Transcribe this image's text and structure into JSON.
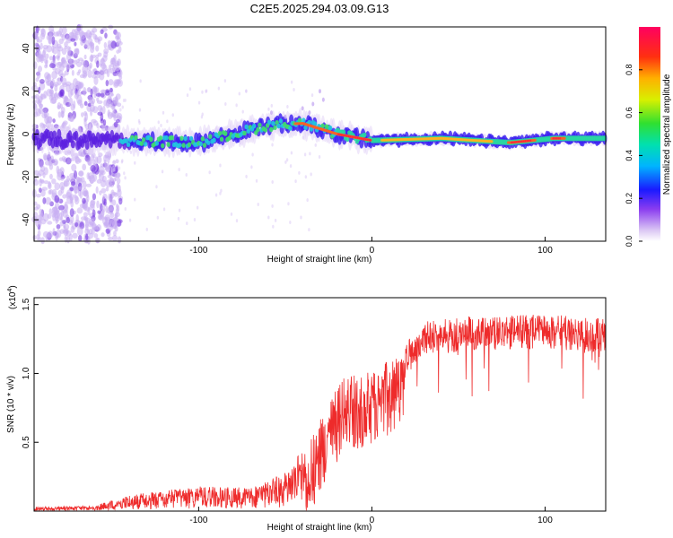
{
  "title": "C2E5.2025.294.03.09.G13",
  "chart_data": [
    {
      "type": "heatmap",
      "xlabel": "Height of straight line (km)",
      "ylabel": "Frequency (Hz)",
      "xlim": [
        -195,
        135
      ],
      "ylim": [
        -50,
        50
      ],
      "xticks": [
        -100,
        0,
        100
      ],
      "yticks": [
        -40,
        -20,
        0,
        20,
        40
      ],
      "xtick_labels": [
        "-100",
        "0",
        "100"
      ],
      "ytick_labels": [
        "-40",
        "-20",
        "0",
        "20",
        "40"
      ],
      "colorbar": {
        "label": "Normalized spectral amplitude",
        "range": [
          0,
          1
        ],
        "ticks": [
          0.0,
          0.2,
          0.4,
          0.6,
          0.8
        ],
        "tick_labels": [
          "0.0",
          "0.2",
          "0.4",
          "0.6",
          "0.8"
        ]
      },
      "ridge": {
        "description_points": [
          {
            "x": -180,
            "y": -3
          },
          {
            "x": -140,
            "y": -3
          },
          {
            "x": -100,
            "y": -4
          },
          {
            "x": -60,
            "y": 4
          },
          {
            "x": -40,
            "y": 5
          },
          {
            "x": -20,
            "y": 0
          },
          {
            "x": 0,
            "y": -3
          },
          {
            "x": 40,
            "y": -2
          },
          {
            "x": 80,
            "y": -4
          },
          {
            "x": 105,
            "y": -2
          },
          {
            "x": 135,
            "y": -2
          }
        ]
      }
    },
    {
      "type": "line",
      "xlabel": "Height of straight line (km)",
      "ylabel": "SNR (10 * v/v)",
      "scale_label": "(x10",
      "scale_exponent": "4",
      "scale_suffix": ")",
      "xlim": [
        -195,
        135
      ],
      "ylim": [
        0,
        1.55
      ],
      "xticks": [
        -100,
        0,
        100
      ],
      "yticks": [
        0.5,
        1.0,
        1.5
      ],
      "xtick_labels": [
        "-100",
        "0",
        "100"
      ],
      "ytick_labels": [
        "0.5",
        "1.0",
        "1.5"
      ],
      "series_color": "#ee2b2b",
      "envelope": [
        {
          "x": -195,
          "y": 0.03
        },
        {
          "x": -160,
          "y": 0.04
        },
        {
          "x": -140,
          "y": 0.12
        },
        {
          "x": -100,
          "y": 0.18
        },
        {
          "x": -70,
          "y": 0.17
        },
        {
          "x": -50,
          "y": 0.28
        },
        {
          "x": -35,
          "y": 0.55
        },
        {
          "x": -25,
          "y": 0.8
        },
        {
          "x": -15,
          "y": 1.0
        },
        {
          "x": -5,
          "y": 1.0
        },
        {
          "x": 10,
          "y": 1.1
        },
        {
          "x": 20,
          "y": 1.22
        },
        {
          "x": 30,
          "y": 1.38
        },
        {
          "x": 45,
          "y": 1.4
        },
        {
          "x": 60,
          "y": 1.42
        },
        {
          "x": 80,
          "y": 1.42
        },
        {
          "x": 100,
          "y": 1.43
        },
        {
          "x": 135,
          "y": 1.4
        }
      ]
    }
  ]
}
